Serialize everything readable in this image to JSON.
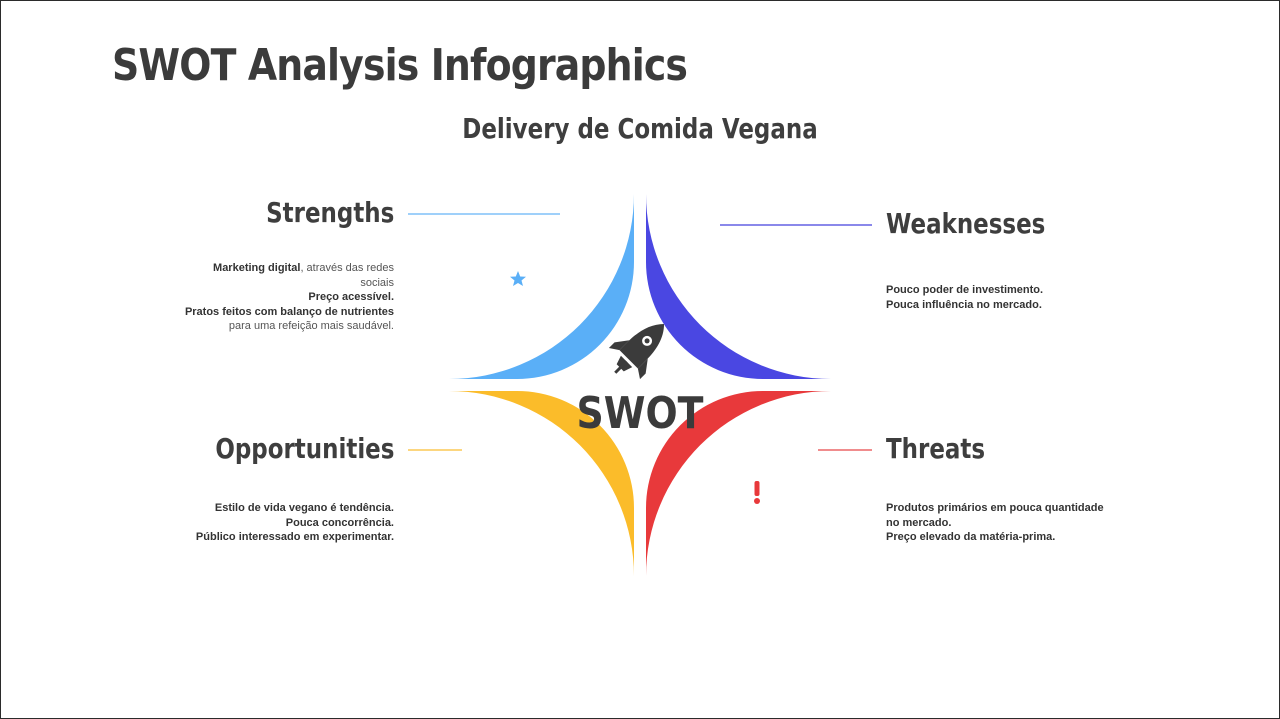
{
  "title": "SWOT Analysis Infographics",
  "subtitle": "Delivery de Comida Vegana",
  "center_label": "SWOT",
  "colors": {
    "strengths": "#5aaff7",
    "weaknesses": "#4a47e2",
    "opportunities": "#fbbc2a",
    "threats": "#e8393b",
    "text": "#3b3b3b"
  },
  "quadrants": {
    "strengths": {
      "heading": "Strengths",
      "icon": "trophy-icon",
      "lines": [
        {
          "bold": "Marketing digital",
          "regular": ", através das redes"
        },
        {
          "bold": "",
          "regular": "sociais"
        },
        {
          "bold": "Preço acessível.",
          "regular": ""
        },
        {
          "bold": "Pratos feitos com balanço de nutrientes",
          "regular": ""
        },
        {
          "bold": "",
          "regular": "para uma refeição mais saudável."
        }
      ]
    },
    "weaknesses": {
      "heading": "Weaknesses",
      "icon": "thumbs-down-icon",
      "lines": [
        {
          "bold": "Pouco poder de investimento.",
          "regular": ""
        },
        {
          "bold": "Pouca influência no mercado.",
          "regular": ""
        }
      ]
    },
    "opportunities": {
      "heading": "Opportunities",
      "icon": "target-icon",
      "lines": [
        {
          "bold": "Estilo de vida vegano é tendência.",
          "regular": ""
        },
        {
          "bold": "Pouca concorrência.",
          "regular": ""
        },
        {
          "bold": "Público interessado em experimentar.",
          "regular": ""
        }
      ]
    },
    "threats": {
      "heading": "Threats",
      "icon": "warning-icon",
      "lines": [
        {
          "bold": "Produtos primários em pouca quantidade",
          "regular": ""
        },
        {
          "bold": "no mercado.",
          "regular": ""
        },
        {
          "bold": "Preço elevado da matéria-prima.",
          "regular": ""
        }
      ]
    }
  }
}
